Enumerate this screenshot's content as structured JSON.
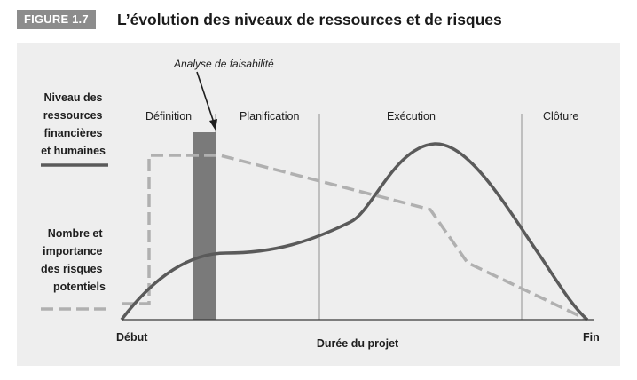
{
  "figure": {
    "badge": "FIGURE 1.7",
    "title": "L’évolution des niveaux de ressources et de risques"
  },
  "diagram": {
    "annotation": "Analyse de faisabilité",
    "phases": [
      "Définition",
      "Planification",
      "Exécution",
      "Clôture"
    ],
    "y_label_resources": [
      "Niveau des",
      "ressources",
      "financières",
      "et humaines"
    ],
    "y_label_risks": [
      "Nombre et",
      "importance",
      "des risques",
      "potentiels"
    ],
    "x_axis": {
      "start": "Début",
      "label": "Durée du projet",
      "end": "Fin"
    },
    "colors": {
      "resources_line": "#5a5a5a",
      "risks_line": "#b0b0b0",
      "feasibility_bar": "#7a7a7a",
      "panel": "#eeeeee"
    }
  }
}
